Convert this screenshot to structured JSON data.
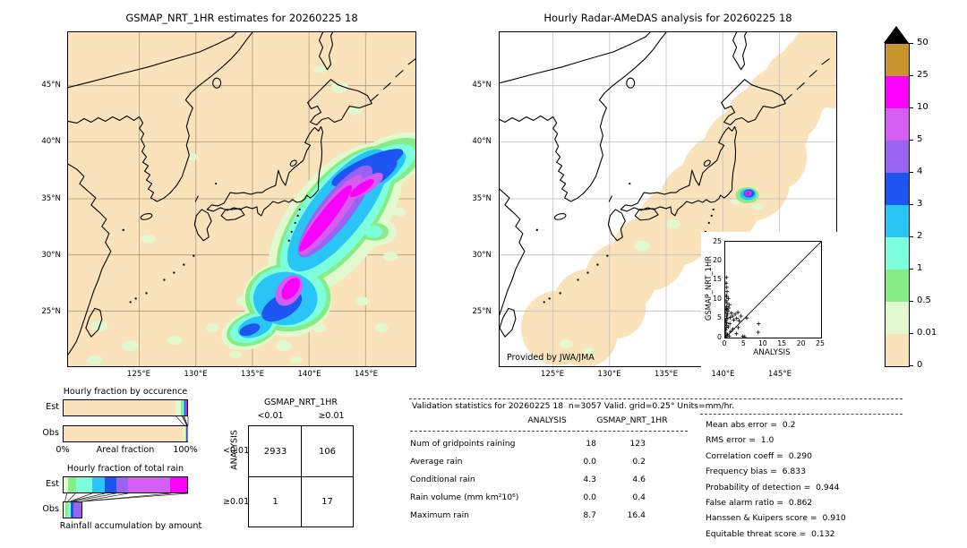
{
  "palette": {
    "tan": "#fae3ba",
    "palegreen": "#e2f8cf",
    "green": "#86ec86",
    "aqua": "#7dffdd",
    "cyan": "#29c5f6",
    "blue": "#1c55f0",
    "purple": "#9763f0",
    "orchid": "#d35ef0",
    "magenta": "#fb00fb",
    "gold": "#c9962e",
    "overflow": "#000000"
  },
  "geo_axes": {
    "lat_labels": [
      "45°N",
      "40°N",
      "35°N",
      "30°N",
      "25°N"
    ],
    "lon_labels": [
      "125°E",
      "130°E",
      "135°E",
      "140°E",
      "145°E"
    ]
  },
  "colorbar": {
    "units": "mm/hr",
    "tick_labels_bottom_to_top": [
      "0",
      "0.01",
      "0.5",
      "1",
      "2",
      "3",
      "4",
      "5",
      "10",
      "25",
      "50"
    ],
    "segment_colors_bottom_to_top": [
      "tan",
      "palegreen",
      "green",
      "aqua",
      "cyan",
      "blue",
      "purple",
      "orchid",
      "magenta",
      "gold"
    ],
    "overflow_top_color": "overflow"
  },
  "chart_data": [
    {
      "type": "heatmap",
      "name": "gsmap-map",
      "title": "GSMAP_NRT_1HR estimates for 20260225 18",
      "xticks": [
        "125°E",
        "130°E",
        "135°E",
        "140°E",
        "145°E"
      ],
      "yticks": [
        "45°N",
        "40°N",
        "35°N",
        "30°N",
        "25°N"
      ],
      "units": "mm/hr",
      "levels": [
        0,
        0.01,
        0.5,
        1,
        2,
        3,
        4,
        5,
        10,
        25,
        50
      ],
      "description": "Precipitation band oriented SW-NE offshore of Honshu near 138-146E, 28-37N with magenta core >10 mm/hr"
    },
    {
      "type": "heatmap",
      "name": "radar-amedas-map",
      "title": "Hourly Radar-AMeDAS analysis for 20260225 18",
      "annotation": "Provided by JWA/JMA",
      "xticks": [
        "125°E",
        "130°E",
        "135°E",
        "140°E",
        "145°E"
      ],
      "yticks": [
        "45°N",
        "40°N",
        "35°N",
        "30°N",
        "25°N"
      ],
      "units": "mm/hr",
      "levels": [
        0,
        0.01,
        0.5,
        1,
        2,
        3,
        4,
        5,
        10,
        25,
        50
      ],
      "description": "Mostly trace coverage band along Japan; one small intense cell east of Boso peninsula near 141.5E, 35N"
    },
    {
      "type": "bar",
      "name": "hourly-fraction-by-occurrence",
      "title": "Hourly fraction by occurence",
      "orientation": "horizontal",
      "categories": [
        "Est",
        "Obs"
      ],
      "xlabel": "Areal fraction",
      "x_range_labels": [
        "0%",
        "100%"
      ],
      "series": [
        {
          "name": "Est",
          "bar_extent_pct": 100,
          "segments": [
            {
              "color": "tan",
              "pct": 90.5
            },
            {
              "color": "palegreen",
              "pct": 4.7
            },
            {
              "color": "green",
              "pct": 0.9
            },
            {
              "color": "aqua",
              "pct": 0.8
            },
            {
              "color": "cyan",
              "pct": 0.8
            },
            {
              "color": "blue",
              "pct": 0.8
            },
            {
              "color": "purple",
              "pct": 0.8
            },
            {
              "color": "magenta",
              "pct": 0.7
            }
          ]
        },
        {
          "name": "Obs",
          "bar_extent_pct": 100,
          "segments": [
            {
              "color": "tan",
              "pct": 97.0
            },
            {
              "color": "palegreen",
              "pct": 1.9
            },
            {
              "color": "green",
              "pct": 0.3
            },
            {
              "color": "cyan",
              "pct": 0.3
            },
            {
              "color": "blue",
              "pct": 0.25
            },
            {
              "color": "purple",
              "pct": 0.25
            }
          ]
        }
      ],
      "connectors": [
        [
          90.5,
          97.0
        ],
        [
          95.2,
          98.9
        ],
        [
          96.1,
          99.2
        ],
        [
          96.9,
          99.5
        ],
        [
          100,
          100
        ]
      ]
    },
    {
      "type": "bar",
      "name": "hourly-fraction-of-total-rain",
      "title": "Hourly fraction of total rain",
      "caption": "Rainfall accumulation by amount",
      "orientation": "horizontal",
      "categories": [
        "Est",
        "Obs"
      ],
      "series": [
        {
          "name": "Est",
          "bar_extent_pct": 100,
          "segments": [
            {
              "color": "palegreen",
              "pct": 3.4
            },
            {
              "color": "green",
              "pct": 6.8
            },
            {
              "color": "aqua",
              "pct": 13.2
            },
            {
              "color": "cyan",
              "pct": 10.2
            },
            {
              "color": "blue",
              "pct": 8.8
            },
            {
              "color": "purple",
              "pct": 9.8
            },
            {
              "color": "orchid",
              "pct": 34.1
            },
            {
              "color": "magenta",
              "pct": 13.7
            }
          ]
        },
        {
          "name": "Obs",
          "bar_extent_pct": 15.5,
          "segments": [
            {
              "color": "palegreen",
              "pct": 1.8
            },
            {
              "color": "green",
              "pct": 2.2
            },
            {
              "color": "aqua",
              "pct": 2.0
            },
            {
              "color": "blue",
              "pct": 2.5
            },
            {
              "color": "purple",
              "pct": 7.0
            }
          ]
        }
      ],
      "connectors": [
        [
          3.4,
          1.8
        ],
        [
          10.2,
          4.0
        ],
        [
          23.4,
          6.0
        ],
        [
          33.6,
          6.0
        ],
        [
          42.4,
          8.5
        ],
        [
          52.2,
          15.5
        ],
        [
          86.3,
          15.5
        ],
        [
          100,
          15.5
        ]
      ]
    },
    {
      "type": "scatter",
      "name": "gsmap-vs-analysis-scatter",
      "xlabel": "ANALYSIS",
      "ylabel": "GSMAP_NRT_1HR",
      "xticks": [
        "0",
        "5",
        "10",
        "15",
        "20",
        "25"
      ],
      "yticks": [
        "0",
        "5",
        "10",
        "15",
        "20",
        "25"
      ],
      "xlim": [
        0,
        25
      ],
      "ylim": [
        0,
        25
      ],
      "reference_line": "y=x",
      "points": [
        [
          0.1,
          0.1
        ],
        [
          0.15,
          0.6
        ],
        [
          0.2,
          1.2
        ],
        [
          0.1,
          2.0
        ],
        [
          0.3,
          2.6
        ],
        [
          0.2,
          3.2
        ],
        [
          0.4,
          3.8
        ],
        [
          0.15,
          4.4
        ],
        [
          0.5,
          5.0
        ],
        [
          0.3,
          5.6
        ],
        [
          0.6,
          6.1
        ],
        [
          0.2,
          6.5
        ],
        [
          0.7,
          6.9
        ],
        [
          0.4,
          7.3
        ],
        [
          0.9,
          7.7
        ],
        [
          0.3,
          8.1
        ],
        [
          1.1,
          8.5
        ],
        [
          0.5,
          9.0
        ],
        [
          0.2,
          9.6
        ],
        [
          0.8,
          10.2
        ],
        [
          0.3,
          11.0
        ],
        [
          0.5,
          12.0
        ],
        [
          0.4,
          13.1
        ],
        [
          0.3,
          15.7
        ],
        [
          1.3,
          5.2
        ],
        [
          1.6,
          6.4
        ],
        [
          1.9,
          5.6
        ],
        [
          2.2,
          4.6
        ],
        [
          2.6,
          6.1
        ],
        [
          3.0,
          5.0
        ],
        [
          3.3,
          6.6
        ],
        [
          3.6,
          4.4
        ],
        [
          4.1,
          5.6
        ],
        [
          1.4,
          1.6
        ],
        [
          2.0,
          2.2
        ],
        [
          1.0,
          0.4
        ],
        [
          2.9,
          1.0
        ],
        [
          3.4,
          2.6
        ],
        [
          4.6,
          0.3
        ],
        [
          5.1,
          0.2
        ],
        [
          5.6,
          5.1
        ],
        [
          8.7,
          3.6
        ],
        [
          8.6,
          1.4
        ],
        [
          0.6,
          0.8
        ],
        [
          0.8,
          2.8
        ],
        [
          1.2,
          3.6
        ],
        [
          0.25,
          14.2
        ],
        [
          0.35,
          10.6
        ],
        [
          0.18,
          7.5
        ],
        [
          0.45,
          4.9
        ]
      ]
    },
    {
      "type": "table",
      "name": "contingency-table",
      "col_group": "GSMAP_NRT_1HR",
      "row_group": "ANALYSIS",
      "col_headers": [
        "<0.01",
        "≥0.01"
      ],
      "row_headers": [
        "<0.01",
        "≥0.01"
      ],
      "values": [
        [
          "2933",
          "106"
        ],
        [
          "1",
          "17"
        ]
      ]
    },
    {
      "type": "table",
      "name": "validation-statistics",
      "title": "Validation statistics for 20260225 18  n=3057 Valid. grid=0.25° Units=mm/hr.",
      "columns": [
        "ANALYSIS",
        "GSMAP_NRT_1HR"
      ],
      "rows": [
        {
          "label": "Num of gridpoints raining",
          "values": [
            "18",
            "123"
          ]
        },
        {
          "label": "Average rain",
          "values": [
            "0.0",
            "0.2"
          ]
        },
        {
          "label": "Conditional rain",
          "values": [
            "4.3",
            "4.6"
          ]
        },
        {
          "label": "Rain volume (mm km²10⁶)",
          "values": [
            "0.0",
            "0.4"
          ]
        },
        {
          "label": "Maximum rain",
          "values": [
            "8.7",
            "16.4"
          ]
        }
      ],
      "scores": [
        {
          "label": "Mean abs error",
          "value": "0.2"
        },
        {
          "label": "RMS error",
          "value": "1.0"
        },
        {
          "label": "Correlation coeff",
          "value": "0.290"
        },
        {
          "label": "Frequency bias",
          "value": "6.833"
        },
        {
          "label": "Probability of detection",
          "value": "0.944"
        },
        {
          "label": "False alarm ratio",
          "value": "0.862"
        },
        {
          "label": "Hanssen & Kuipers score",
          "value": "0.910"
        },
        {
          "label": "Equitable threat score",
          "value": "0.132"
        }
      ]
    }
  ]
}
